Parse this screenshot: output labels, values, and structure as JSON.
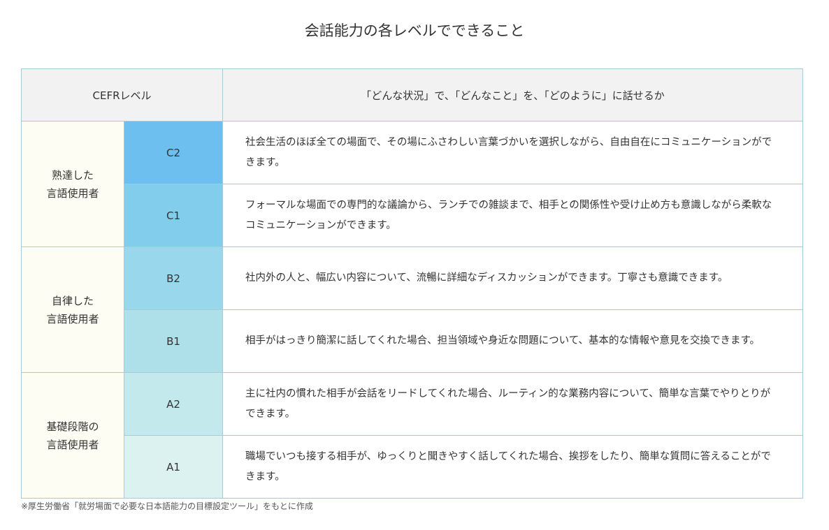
{
  "title": "会話能力の各レベルでできること",
  "header": {
    "level": "CEFRレベル",
    "description": "「どんな状況」で、「どんなこと」を、「どのように」に話せるか"
  },
  "groups": [
    {
      "label_line1": "熟達した",
      "label_line2": "言語使用者"
    },
    {
      "label_line1": "自律した",
      "label_line2": "言語使用者"
    },
    {
      "label_line1": "基礎段階の",
      "label_line2": "言語使用者"
    }
  ],
  "rows": [
    {
      "level": "C2",
      "color": "#6cbfee",
      "description": "社会生活のほぼ全ての場面で、その場にふさわしい言葉づかいを選択しながら、自由自在にコミュニケーションができます。"
    },
    {
      "level": "C1",
      "color": "#83cdec",
      "description": "フォーマルな場面での専門的な議論から、ランチでの雑談まで、相手との関係性や受け止め方も意識しながら柔軟なコミュニケーションができます。"
    },
    {
      "level": "B2",
      "color": "#98d7ec",
      "description": "社内外の人と、幅広い内容について、流暢に詳細なディスカッションができます。丁寧さも意識できます。"
    },
    {
      "level": "B1",
      "color": "#ade0e9",
      "description": "相手がはっきり簡潔に話してくれた場合、担当領域や身近な問題について、基本的な情報や意見を交換できます。"
    },
    {
      "level": "A2",
      "color": "#c3e9ec",
      "description": "主に社内の慣れた相手が会話をリードしてくれた場合、ルーティン的な業務内容について、簡単な言葉でやりとりができます。"
    },
    {
      "level": "A1",
      "color": "#dcf2f0",
      "description": "職場でいつも接する相手が、ゆっくりと聞きやすく話してくれた場合、挨拶をしたり、簡単な質問に答えることができます。"
    }
  ],
  "note": "※厚生労働省「就労場面で必要な日本語能力の目標設定ツール」をもとに作成"
}
